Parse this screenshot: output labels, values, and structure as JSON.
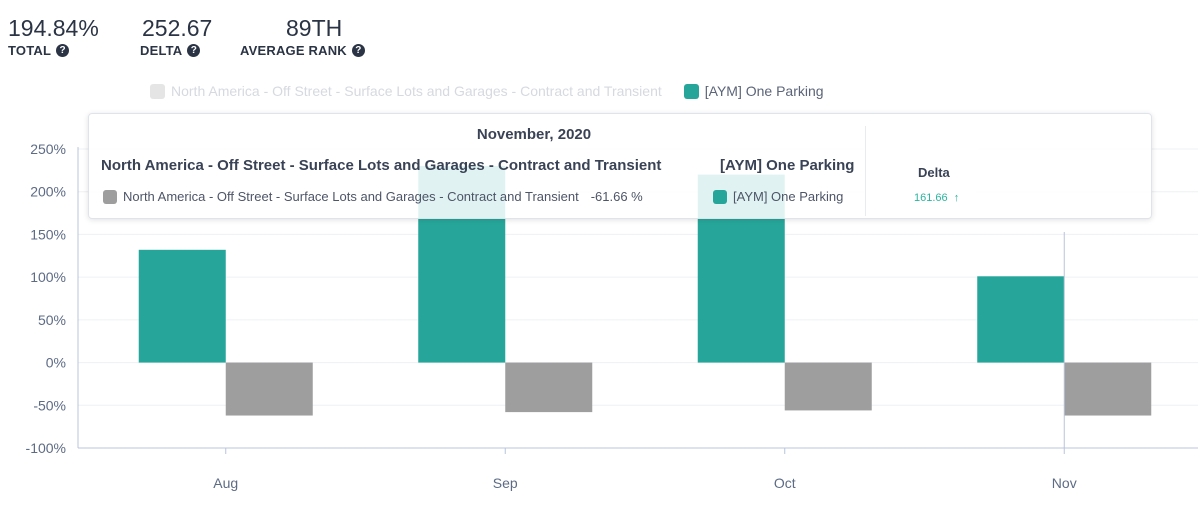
{
  "kpis": {
    "total": {
      "value": "194.84%",
      "label": "TOTAL"
    },
    "delta": {
      "value": "252.67",
      "label": "DELTA"
    },
    "rank": {
      "value": "89TH",
      "label": "AVERAGE RANK"
    }
  },
  "legend": [
    {
      "name": "North America - Off Street - Surface Lots and Garages - Contract and Transient",
      "color": "#9e9e9e",
      "state": "faded"
    },
    {
      "name": "[AYM] One Parking",
      "color": "#26a69a",
      "state": "active"
    }
  ],
  "tooltip": {
    "title": "November, 2020",
    "col1_header": "North America - Off Street - Surface Lots and Garages - Contract and Transient",
    "col2_header": "[AYM] One Parking",
    "row1_label": "North America - Off Street - Surface Lots and Garages - Contract and Transient",
    "row1_value": "-61.66 %",
    "row2_label": "[AYM] One Parking",
    "delta_header": "Delta",
    "delta_value": "161.66",
    "delta_icon": "arrow-up-icon"
  },
  "colors": {
    "teal": "#26a69a",
    "gray": "#9e9e9e",
    "axis": "#b8c4dc",
    "grid": "#eef0f4",
    "tick_text": "#5d6b85"
  },
  "chart_data": {
    "type": "bar",
    "categories": [
      "Aug",
      "Sep",
      "Oct",
      "Nov"
    ],
    "series": [
      {
        "name": "[AYM] One Parking",
        "color": "#26a69a",
        "values": [
          132,
          230,
          220,
          101
        ]
      },
      {
        "name": "North America - Off Street - Surface Lots and Garages - Contract and Transient",
        "color": "#9e9e9e",
        "values": [
          -62,
          -58,
          -56,
          -62
        ]
      }
    ],
    "ylim": [
      -100,
      250
    ],
    "yticks": [
      250,
      200,
      150,
      100,
      50,
      0,
      -50,
      -100
    ],
    "ytick_labels": [
      "250%",
      "200%",
      "150%",
      "100%",
      "50%",
      "0%",
      "-50%",
      "-100%"
    ],
    "grid": true,
    "legend_position": "top-center"
  }
}
